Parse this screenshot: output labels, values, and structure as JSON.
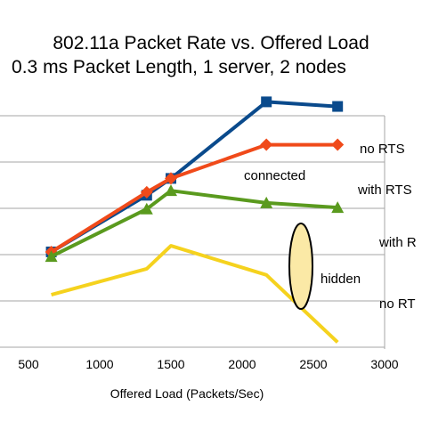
{
  "chart_data": {
    "type": "line",
    "title": "802.11a Packet Rate vs. Offered Load",
    "subtitle": "0.3 ms Packet Length, 1 server, 2 nodes",
    "xlabel": "Offered Load (Packets/Sec)",
    "ylabel": "",
    "xlim": [
      500,
      3000
    ],
    "x_ticks": [
      500,
      1000,
      1500,
      2000,
      2500,
      3000
    ],
    "grid": "horizontal",
    "legend": "inline labels at right end of each series",
    "series": [
      {
        "name": "no RTS",
        "color": "#0a4a8c",
        "marker": "square",
        "x": [
          660,
          1330,
          1500,
          2170,
          2670
        ],
        "y": [
          0.32,
          0.69,
          0.8,
          1.3,
          1.27
        ]
      },
      {
        "name": "with RTS",
        "color": "#f04a1a",
        "marker": "diamond",
        "x": [
          660,
          1330,
          1500,
          2170,
          2670
        ],
        "y": [
          0.32,
          0.71,
          0.8,
          1.02,
          1.02
        ]
      },
      {
        "name": "with RTS",
        "color": "#5a9a1e",
        "marker": "triangle",
        "x": [
          660,
          1330,
          1500,
          2170,
          2670
        ],
        "y": [
          0.29,
          0.6,
          0.72,
          0.64,
          0.61
        ]
      },
      {
        "name": "no RTS",
        "color": "#f5d21e",
        "marker": "none",
        "x": [
          660,
          1330,
          1500,
          2170,
          2670
        ],
        "y": [
          0.04,
          0.21,
          0.36,
          0.17,
          -0.27
        ]
      }
    ],
    "series_labels_visible": [
      "no RTS",
      "with RTS",
      "with R",
      "no RT"
    ],
    "annotations": [
      {
        "text": "connected"
      },
      {
        "text": "hidden"
      }
    ],
    "ellipse_color": "#fbe9a6"
  }
}
